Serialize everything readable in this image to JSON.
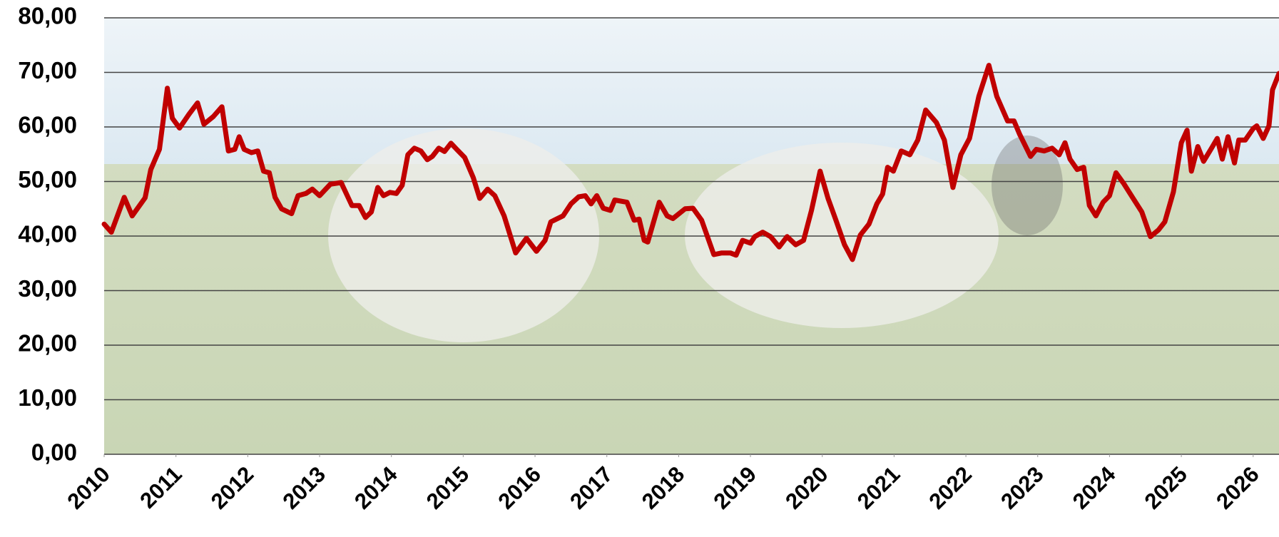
{
  "chart_data": {
    "type": "line",
    "color": "#c00000",
    "grid": true,
    "x": [
      2010,
      2010.1,
      2010.28,
      2010.39,
      2010.57,
      2010.65,
      2010.77,
      2010.88,
      2010.95,
      2011.05,
      2011.18,
      2011.3,
      2011.39,
      2011.52,
      2011.64,
      2011.73,
      2011.82,
      2011.88,
      2011.95,
      2012.05,
      2012.14,
      2012.22,
      2012.3,
      2012.38,
      2012.47,
      2012.61,
      2012.7,
      2012.81,
      2012.9,
      2013,
      2013.15,
      2013.3,
      2013.45,
      2013.55,
      2013.64,
      2013.72,
      2013.81,
      2013.89,
      2013.98,
      2014.07,
      2014.15,
      2014.23,
      2014.32,
      2014.41,
      2014.5,
      2014.57,
      2014.66,
      2014.74,
      2014.83,
      2014.91,
      2015.02,
      2015.14,
      2015.23,
      2015.34,
      2015.44,
      2015.57,
      2015.73,
      2015.88,
      2016.02,
      2016.14,
      2016.22,
      2016.39,
      2016.5,
      2016.61,
      2016.7,
      2016.78,
      2016.86,
      2016.95,
      2017.05,
      2017.11,
      2017.28,
      2017.38,
      2017.45,
      2017.52,
      2017.57,
      2017.73,
      2017.84,
      2017.92,
      2018.09,
      2018.2,
      2018.32,
      2018.49,
      2018.6,
      2018.72,
      2018.8,
      2018.89,
      2019,
      2019.06,
      2019.17,
      2019.28,
      2019.4,
      2019.51,
      2019.63,
      2019.74,
      2019.85,
      2019.97,
      2020.08,
      2020.19,
      2020.31,
      2020.42,
      2020.53,
      2020.65,
      2020.76,
      2020.84,
      2020.91,
      2020.99,
      2021.1,
      2021.22,
      2021.33,
      2021.44,
      2021.59,
      2021.7,
      2021.82,
      2021.93,
      2022.05,
      2022.18,
      2022.32,
      2022.43,
      2022.58,
      2022.67,
      2022.75,
      2022.9,
      2022.98,
      2023.09,
      2023.2,
      2023.3,
      2023.38,
      2023.45,
      2023.55,
      2023.64,
      2023.72,
      2023.81,
      2023.91,
      2024,
      2024.09,
      2024.2,
      2024.32,
      2024.45,
      2024.57,
      2024.68,
      2024.77,
      2024.89,
      2025,
      2025.08,
      2025.14,
      2025.23,
      2025.31,
      2025.42,
      2025.5,
      2025.57,
      2025.65,
      2025.74,
      2025.8,
      2025.89,
      2026,
      2026.05,
      2026.14,
      2026.22,
      2026.27,
      2026.36
    ],
    "values": [
      42.2,
      40.7,
      47.1,
      43.7,
      47,
      52.2,
      55.9,
      67.1,
      61.6,
      59.8,
      62.3,
      64.4,
      60.5,
      61.9,
      63.7,
      55.6,
      55.9,
      58.2,
      55.9,
      55.3,
      55.6,
      51.9,
      51.6,
      47.1,
      45,
      44.1,
      47.4,
      47.8,
      48.6,
      47.4,
      49.5,
      49.8,
      45.6,
      45.6,
      43.4,
      44.4,
      48.9,
      47.4,
      48,
      47.8,
      49.3,
      54.9,
      56.1,
      55.6,
      54,
      54.6,
      56.1,
      55.5,
      57,
      55.9,
      54.4,
      50.7,
      46.9,
      48.6,
      47.4,
      43.7,
      36.9,
      39.6,
      37.2,
      39.2,
      42.6,
      43.7,
      45.9,
      47.2,
      47.4,
      45.9,
      47.4,
      45.1,
      44.7,
      46.6,
      46.2,
      42.9,
      43.1,
      39.2,
      38.9,
      46.2,
      43.7,
      43.2,
      45,
      45.1,
      42.9,
      36.6,
      36.9,
      36.9,
      36.5,
      39.2,
      38.7,
      39.9,
      40.7,
      39.9,
      38,
      39.9,
      38.4,
      39.2,
      44.7,
      51.9,
      46.9,
      42.9,
      38.4,
      35.7,
      40.2,
      42.2,
      45.9,
      47.7,
      52.6,
      51.9,
      55.6,
      54.9,
      57.6,
      63.1,
      60.8,
      57.6,
      48.9,
      54.9,
      57.9,
      65.6,
      71.3,
      65.6,
      61.1,
      61.1,
      58.6,
      54.6,
      55.9,
      55.6,
      56.1,
      54.9,
      57.1,
      54.1,
      52.2,
      52.6,
      45.6,
      43.7,
      46.2,
      47.4,
      51.6,
      49.6,
      47.1,
      44.4,
      39.9,
      41.1,
      42.6,
      48.1,
      57.1,
      59.4,
      51.9,
      56.4,
      53.7,
      56.1,
      57.9,
      54.1,
      58.2,
      53.4,
      57.6,
      57.6,
      59.7,
      60.2,
      57.9,
      60.2,
      66.8,
      69.8
    ],
    "xlim": [
      2010,
      2026.36
    ],
    "xticks": [
      2010,
      2011,
      2012,
      2013,
      2014,
      2015,
      2016,
      2017,
      2018,
      2019,
      2020,
      2021,
      2022,
      2023,
      2024,
      2025,
      2026
    ],
    "ylim": [
      0,
      80
    ],
    "yticks": [
      {
        "value": 0,
        "label": "0,00"
      },
      {
        "value": 10,
        "label": "10,00"
      },
      {
        "value": 20,
        "label": "20,00"
      },
      {
        "value": 30,
        "label": "30,00"
      },
      {
        "value": 40,
        "label": "40,00"
      },
      {
        "value": 50,
        "label": "50,00"
      },
      {
        "value": 60,
        "label": "60,00"
      },
      {
        "value": 70,
        "label": "70,00"
      },
      {
        "value": 80,
        "label": "80,00"
      }
    ]
  }
}
